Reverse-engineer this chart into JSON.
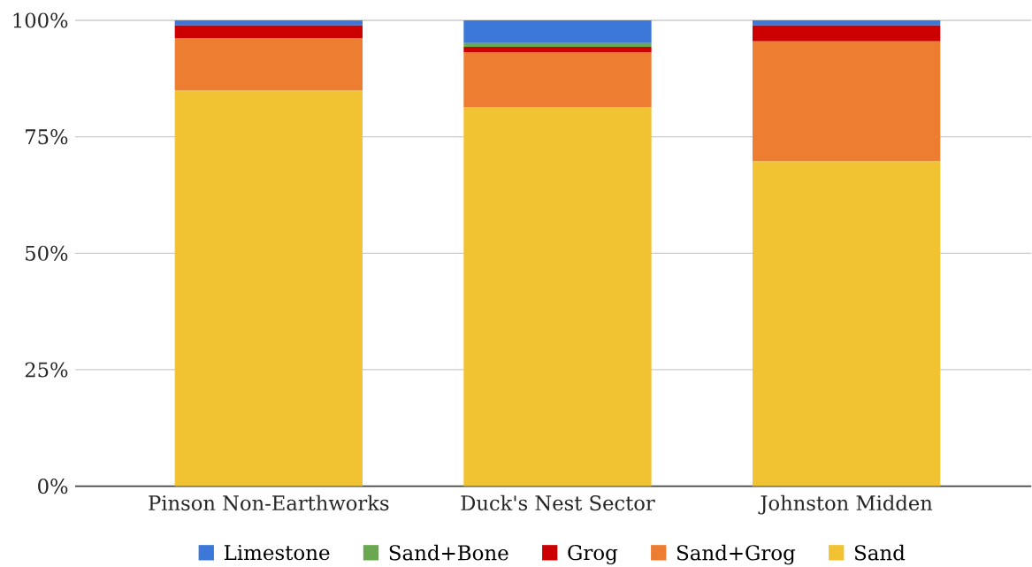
{
  "chart_data": {
    "type": "bar",
    "stacked": true,
    "categories": [
      "Pinson Non-Earthworks",
      "Duck's Nest Sector",
      "Johnston Midden"
    ],
    "series": [
      {
        "name": "Sand",
        "color": "#f1c232",
        "values": [
          84.9,
          81.4,
          69.7
        ]
      },
      {
        "name": "Sand+Grog",
        "color": "#ed7d31",
        "values": [
          11.3,
          11.7,
          25.8
        ]
      },
      {
        "name": "Grog",
        "color": "#cc0000",
        "values": [
          2.7,
          1.2,
          3.4
        ]
      },
      {
        "name": "Sand+Bone",
        "color": "#6aa84f",
        "values": [
          0,
          0.8,
          0
        ]
      },
      {
        "name": "Limestone",
        "color": "#3c78d8",
        "values": [
          1.1,
          4.9,
          1.1
        ]
      }
    ],
    "ylim": [
      0,
      100
    ],
    "yticks": [
      {
        "value": 0,
        "label": "0%"
      },
      {
        "value": 25,
        "label": "25%"
      },
      {
        "value": 50,
        "label": "50%"
      },
      {
        "value": 75,
        "label": "75%"
      },
      {
        "value": 100,
        "label": "100%"
      }
    ],
    "grid": "y",
    "legend": "bottom"
  }
}
